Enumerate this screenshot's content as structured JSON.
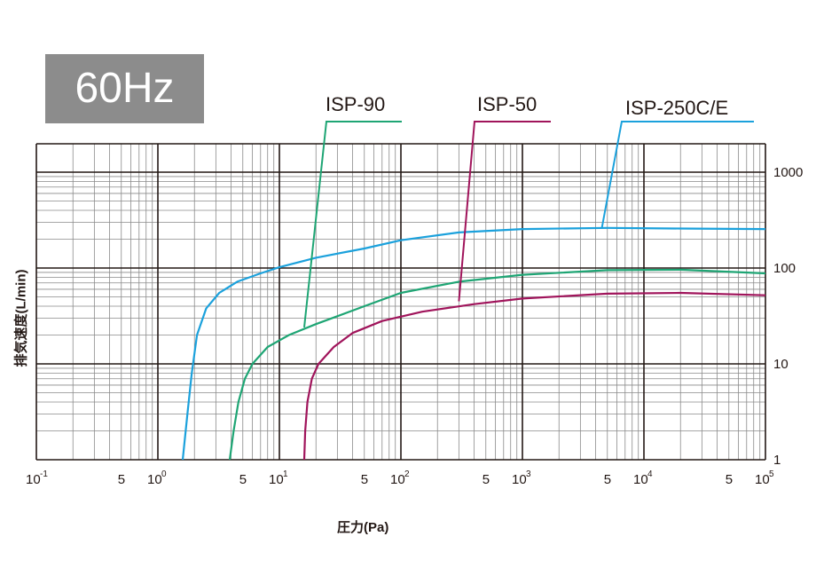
{
  "badge": "60Hz",
  "ylabel": "排気速度(L/min)",
  "xlabel": "圧力(Pa)",
  "chart_data": {
    "type": "line",
    "x_scale": "log",
    "y_scale": "log",
    "xlim": [
      0.1,
      100000
    ],
    "ylim": [
      1,
      2000
    ],
    "grid": true,
    "x_major_ticks": [
      {
        "label": "10",
        "exp": "-1",
        "value": 0.1
      },
      {
        "label": "10",
        "exp": "0",
        "value": 1
      },
      {
        "label": "10",
        "exp": "1",
        "value": 10
      },
      {
        "label": "10",
        "exp": "2",
        "value": 100
      },
      {
        "label": "10",
        "exp": "3",
        "value": 1000
      },
      {
        "label": "10",
        "exp": "4",
        "value": 10000
      },
      {
        "label": "10",
        "exp": "5",
        "value": 100000
      }
    ],
    "x_minor_labels": [
      {
        "label": "5",
        "value": 0.5
      },
      {
        "label": "5",
        "value": 5
      },
      {
        "label": "5",
        "value": 50
      },
      {
        "label": "5",
        "value": 500
      },
      {
        "label": "5",
        "value": 5000
      },
      {
        "label": "5",
        "value": 50000
      }
    ],
    "y_tick_labels": [
      {
        "label": "1",
        "value": 1
      },
      {
        "label": "10",
        "value": 10
      },
      {
        "label": "100",
        "value": 100
      },
      {
        "label": "1000",
        "value": 1000
      }
    ],
    "series": [
      {
        "name": "ISP-250C/E",
        "color": "#1ba1dc",
        "label_anchor": {
          "x": 4500,
          "y": 260
        },
        "points": [
          [
            1.6,
            1
          ],
          [
            1.75,
            3
          ],
          [
            1.9,
            8
          ],
          [
            2.1,
            20
          ],
          [
            2.5,
            38
          ],
          [
            3.2,
            55
          ],
          [
            4.5,
            72
          ],
          [
            7,
            88
          ],
          [
            10,
            102
          ],
          [
            20,
            128
          ],
          [
            50,
            160
          ],
          [
            100,
            195
          ],
          [
            300,
            235
          ],
          [
            1000,
            255
          ],
          [
            5000,
            262
          ],
          [
            20000,
            258
          ],
          [
            100000,
            255
          ]
        ]
      },
      {
        "name": "ISP-90",
        "color": "#1ea574",
        "label_anchor": {
          "x": 16,
          "y": 24
        },
        "points": [
          [
            3.9,
            1
          ],
          [
            4.2,
            2
          ],
          [
            4.6,
            4
          ],
          [
            5.2,
            7
          ],
          [
            6,
            10
          ],
          [
            8,
            15
          ],
          [
            12,
            20
          ],
          [
            20,
            26
          ],
          [
            50,
            40
          ],
          [
            100,
            55
          ],
          [
            300,
            72
          ],
          [
            1000,
            85
          ],
          [
            5000,
            95
          ],
          [
            20000,
            96
          ],
          [
            100000,
            88
          ]
        ]
      },
      {
        "name": "ISP-50",
        "color": "#a0145b",
        "label_anchor": {
          "x": 300,
          "y": 45
        },
        "points": [
          [
            16,
            1
          ],
          [
            16.3,
            2
          ],
          [
            17,
            4
          ],
          [
            18.5,
            7
          ],
          [
            21,
            10
          ],
          [
            28,
            15
          ],
          [
            40,
            21
          ],
          [
            70,
            28
          ],
          [
            150,
            35
          ],
          [
            400,
            42
          ],
          [
            1000,
            48
          ],
          [
            5000,
            54
          ],
          [
            20000,
            55
          ],
          [
            100000,
            52
          ]
        ]
      }
    ]
  }
}
